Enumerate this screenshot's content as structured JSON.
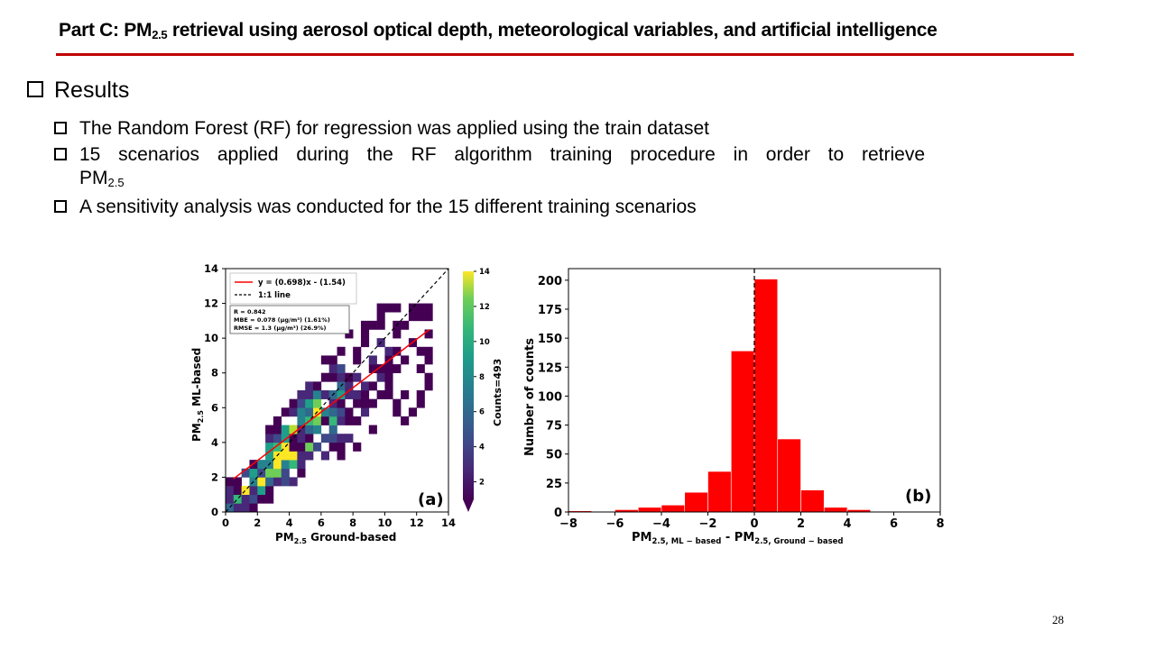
{
  "slide": {
    "title_prefix": "Part C: PM",
    "title_sub": "2.5",
    "title_suffix": " retrieval using aerosol optical depth, meteorological variables, and artificial intelligence",
    "heading": "Results",
    "bullets": [
      "The Random Forest (RF) for regression was applied using the train dataset",
      "15 scenarios applied during the RF algorithm training procedure in order to retrieve",
      "A sensitivity analysis was conducted for the 15 different training scenarios"
    ],
    "bullet2_cont_prefix": "PM",
    "bullet2_cont_sub": "2.5",
    "page_number": "28",
    "accent_color": "#c00000"
  },
  "chart_data": [
    {
      "type": "heatmap",
      "panel_label": "(a)",
      "xlabel": "PM2.5 Ground-based",
      "ylabel": "PM2.5 ML-based",
      "xlim": [
        0,
        14
      ],
      "ylim": [
        0,
        14
      ],
      "x_ticks": [
        "0",
        "2",
        "4",
        "6",
        "8",
        "10",
        "12",
        "14"
      ],
      "y_ticks": [
        "0",
        "2",
        "4",
        "6",
        "8",
        "10",
        "12",
        "14"
      ],
      "legend": [
        "y = (0.698)x - (1.54)",
        "1:1 line"
      ],
      "stats": [
        "R = 0.842",
        "MBE = 0.078 (μg/m³) (1.61%)",
        "RMSE = 1.3 (μg/m³) (26.9%)"
      ],
      "colorbar_label": "Counts=493",
      "colorbar_ticks": [
        "2",
        "4",
        "6",
        "8",
        "10",
        "12",
        "14"
      ],
      "colorbar_range": [
        1,
        14
      ],
      "regression": {
        "slope": 0.698,
        "intercept": -1.54
      },
      "fit_line_range": [
        0.5,
        12.8
      ],
      "colors": {
        "fit_line": "#ff0000",
        "one_to_one": "#000000"
      }
    },
    {
      "type": "bar",
      "panel_label": "(b)",
      "xlabel": "PM2.5, ML − based - PM2.5, Ground − based",
      "ylabel": "Number of counts",
      "xlim": [
        -8,
        8
      ],
      "ylim": [
        0,
        210
      ],
      "x_ticks": [
        "−8",
        "−6",
        "−4",
        "−2",
        "0",
        "2",
        "4",
        "6",
        "8"
      ],
      "y_ticks": [
        "0",
        "25",
        "50",
        "75",
        "100",
        "125",
        "150",
        "175",
        "200"
      ],
      "bin_edges": [
        -8,
        -7,
        -6,
        -5,
        -4,
        -3,
        -2,
        -1,
        0,
        1,
        2,
        3,
        4,
        5
      ],
      "values": [
        1,
        0,
        2,
        4,
        6,
        17,
        35,
        139,
        201,
        63,
        19,
        4,
        2
      ],
      "bar_color": "#ff0000",
      "reference_line_x": 0
    }
  ]
}
